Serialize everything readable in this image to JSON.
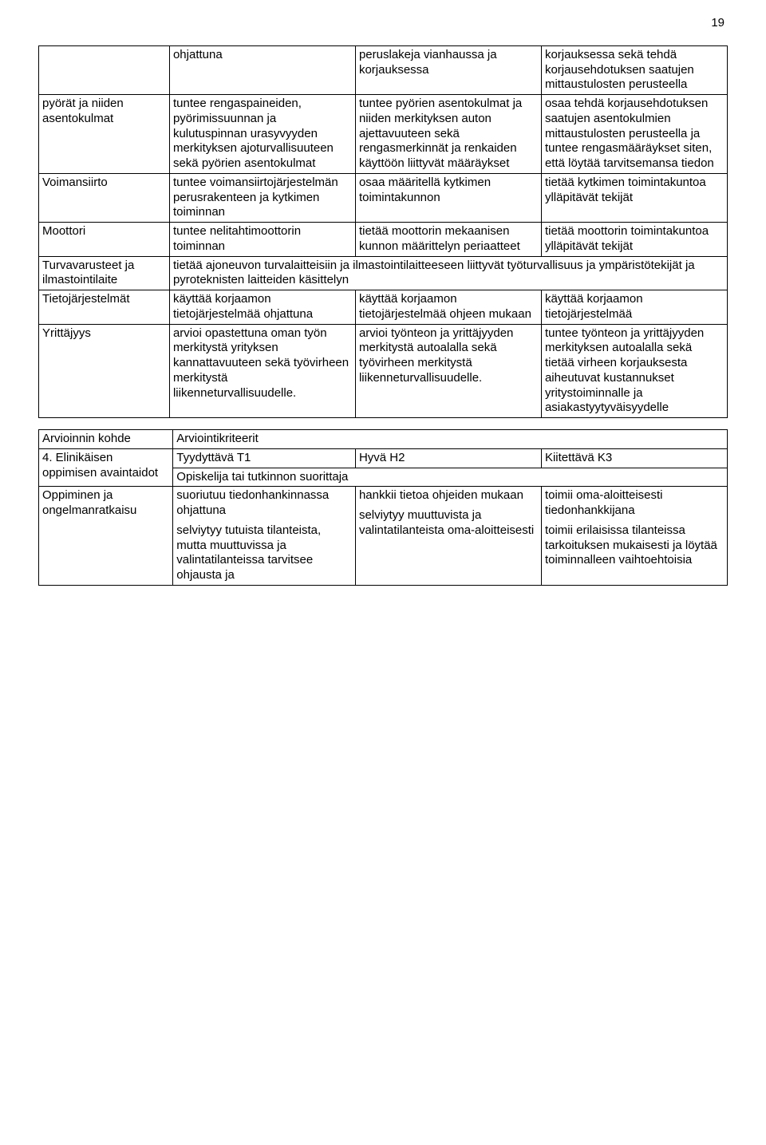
{
  "page_number": "19",
  "colors": {
    "text": "#000000",
    "border": "#000000",
    "background": "#ffffff"
  },
  "font": {
    "family": "Arial",
    "size_pt": 11
  },
  "table1": {
    "col_widths_pct": [
      19,
      27,
      27,
      27
    ],
    "rows": [
      {
        "c1": "",
        "c2": "ohjattuna",
        "c3": "peruslakeja vianhaussa ja korjauksessa",
        "c4": "korjauksessa sekä tehdä korjausehdotuksen saatujen mittaustulosten perusteella"
      },
      {
        "c1": "pyörät ja niiden asentokulmat",
        "c2": "tuntee rengaspaineiden, pyörimissuunnan ja kulutuspinnan urasyvyyden merkityksen ajoturvallisuuteen sekä pyörien asentokulmat",
        "c3": "tuntee pyörien asentokulmat ja niiden merkityksen auton ajettavuuteen sekä rengasmerkinnät ja renkaiden käyttöön liittyvät määräykset",
        "c4": "osaa tehdä korjausehdotuksen saatujen asentokulmien mittaustulosten perusteella ja tuntee rengasmääräykset siten, että löytää tarvitsemansa tiedon"
      },
      {
        "c1": "Voimansiirto",
        "c2": "tuntee voimansiirtojärjestelmän perusrakenteen ja kytkimen toiminnan",
        "c3": "osaa määritellä kytkimen toimintakunnon",
        "c4": "tietää kytkimen toimintakuntoa ylläpitävät tekijät"
      },
      {
        "c1": "Moottori",
        "c2": "tuntee nelitahtimoottorin toiminnan",
        "c3": "tietää moottorin mekaanisen kunnon määrittelyn periaatteet",
        "c4": "tietää moottorin toimintakuntoa ylläpitävät tekijät"
      },
      {
        "c1": "Turvavarusteet ja ilmastointilaite",
        "c2_span": "tietää ajoneuvon turvalaitteisiin ja ilmastointilaitteeseen liittyvät työturvallisuus ja ympäristötekijät ja pyroteknisten laitteiden käsittelyn"
      },
      {
        "c1": "Tietojärjestelmät",
        "c2": "käyttää korjaamon tietojärjestelmää ohjattuna",
        "c3": "käyttää korjaamon tietojärjestelmää ohjeen mukaan",
        "c4": "käyttää korjaamon tietojärjestelmää"
      },
      {
        "c1": "Yrittäjyys",
        "c2": "arvioi opastettuna oman työn merkitystä yrityksen kannattavuuteen sekä työvirheen merkitystä liikenneturvallisuudelle.",
        "c3": "arvioi työnteon ja yrittäjyyden merkitystä autoalalla sekä työvirheen merkitystä liikenneturvallisuudelle.",
        "c4": "tuntee työnteon ja yrittäjyyden merkityksen autoalalla sekä tietää virheen korjauksesta aiheutuvat kustannukset yritystoiminnalle ja asiakastyytyväisyydelle"
      }
    ]
  },
  "table2": {
    "col_widths_pct": [
      19.5,
      26.5,
      27,
      27
    ],
    "rows": [
      {
        "c1": "Arvioinnin kohde",
        "c234": "Arviointikriteerit"
      },
      {
        "c1_a": "4. Elinikäisen oppimisen avaintaidot",
        "c2": "Tyydyttävä T1",
        "c3": "Hyvä H2",
        "c4": "Kiitettävä K3",
        "c234_row2": "Opiskelija tai tutkinnon suorittaja"
      },
      {
        "c1": "Oppiminen ja ongelmanratkaisu",
        "c2a": "suoriutuu tiedonhankinnassa ohjattuna",
        "c2b": "selviytyy tutuista tilanteista, mutta muuttuvissa ja valintatilanteissa tarvitsee ohjausta ja",
        "c3a": "hankkii tietoa ohjeiden mukaan",
        "c3b": "selviytyy muuttuvista ja valintatilanteista oma-aloitteisesti",
        "c4a": "toimii oma-aloitteisesti tiedonhankkijana",
        "c4b": "toimii erilaisissa tilanteissa tarkoituksen mukaisesti ja löytää toiminnalleen vaihtoehtoisia"
      }
    ]
  }
}
